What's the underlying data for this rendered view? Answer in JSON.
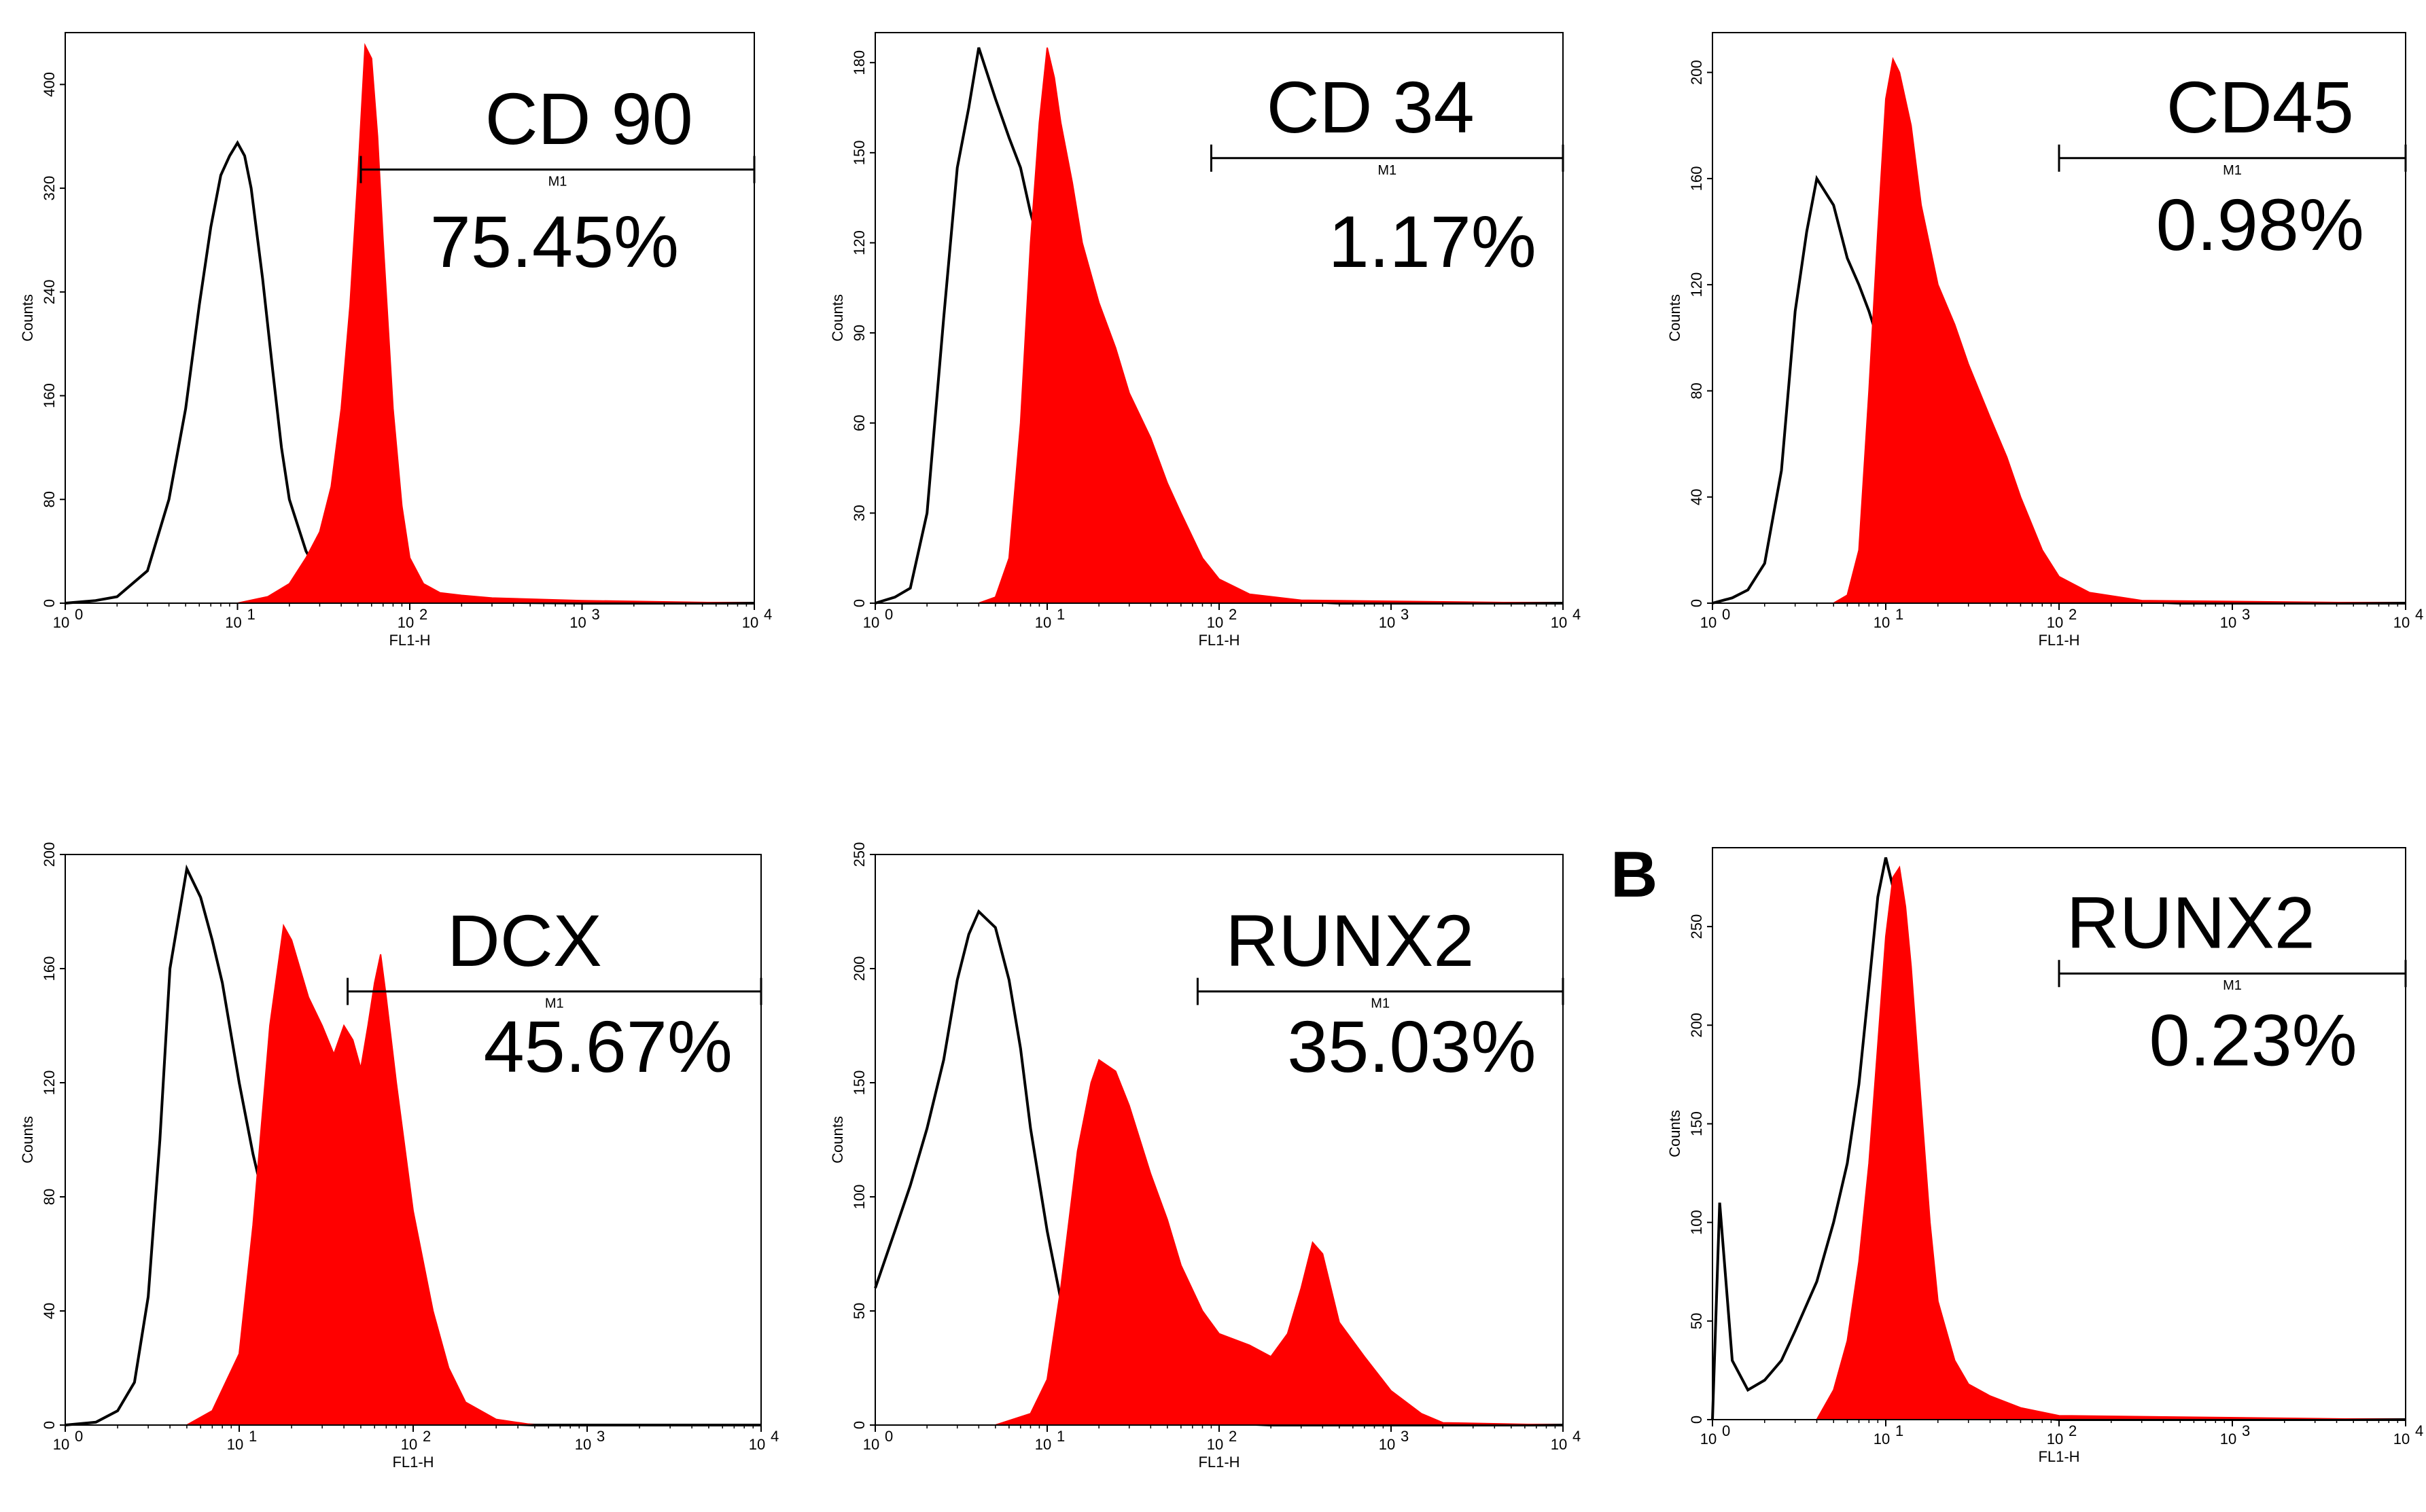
{
  "chart_data": [
    {
      "type": "area",
      "title": "CD 90",
      "percent": "75.45%",
      "gate_label": "M1",
      "gate_range": [
        52,
        10000
      ],
      "xlabel": "FL1-H",
      "ylabel": "Counts",
      "xscale": "log",
      "xlim": [
        1,
        10000
      ],
      "ylim": [
        0,
        440
      ],
      "xticks": [
        "10",
        "10",
        "10",
        "10",
        "10"
      ],
      "xtick_exps": [
        "0",
        "1",
        "2",
        "3",
        "4"
      ],
      "yticks": [
        "0",
        "80",
        "160",
        "240",
        "320",
        "400"
      ],
      "yticks_values": [
        0,
        80,
        160,
        240,
        320,
        400
      ],
      "series": [
        {
          "color": "#000000",
          "fill": "none",
          "x": [
            1,
            1.5,
            2,
            3,
            4,
            5,
            6,
            7,
            8,
            9,
            10,
            11,
            12,
            14,
            16,
            18,
            20,
            25,
            30,
            40,
            60,
            100,
            200,
            1000,
            10000
          ],
          "y": [
            0,
            2,
            5,
            25,
            80,
            150,
            230,
            290,
            330,
            345,
            355,
            345,
            320,
            250,
            180,
            120,
            80,
            40,
            22,
            12,
            6,
            3,
            1,
            0,
            0
          ]
        },
        {
          "color": "#ff0000",
          "fill": "#ff0000",
          "x": [
            1,
            10,
            15,
            20,
            25,
            30,
            35,
            40,
            45,
            50,
            55,
            60,
            65,
            70,
            80,
            90,
            100,
            120,
            150,
            200,
            300,
            1000,
            10000
          ],
          "y": [
            0,
            0,
            5,
            15,
            35,
            55,
            90,
            150,
            230,
            330,
            430,
            420,
            360,
            280,
            150,
            75,
            35,
            15,
            8,
            6,
            4,
            2,
            0
          ]
        }
      ]
    },
    {
      "type": "area",
      "title": "CD 34",
      "percent": "1.17%",
      "gate_label": "M1",
      "gate_range": [
        90,
        10000
      ],
      "xlabel": "FL1-H",
      "ylabel": "Counts",
      "xscale": "log",
      "xlim": [
        1,
        10000
      ],
      "ylim": [
        0,
        190
      ],
      "xticks": [
        "10",
        "10",
        "10",
        "10",
        "10"
      ],
      "xtick_exps": [
        "0",
        "1",
        "2",
        "3",
        "4"
      ],
      "yticks": [
        "0",
        "30",
        "60",
        "90",
        "120",
        "150",
        "180"
      ],
      "yticks_values": [
        0,
        30,
        60,
        90,
        120,
        150,
        180
      ],
      "series": [
        {
          "color": "#000000",
          "fill": "none",
          "x": [
            1,
            1.3,
            1.6,
            2,
            2.5,
            3,
            3.5,
            4,
            5,
            6,
            7,
            8,
            10,
            13,
            16,
            20,
            30,
            40,
            60,
            80,
            100,
            200,
            500,
            10000
          ],
          "y": [
            0,
            2,
            5,
            30,
            95,
            145,
            165,
            185,
            168,
            155,
            145,
            130,
            110,
            95,
            80,
            70,
            50,
            38,
            20,
            10,
            5,
            1,
            0,
            0
          ]
        },
        {
          "color": "#ff0000",
          "fill": "#ff0000",
          "x": [
            1,
            4,
            5,
            6,
            7,
            8,
            9,
            10,
            11,
            12,
            14,
            16,
            20,
            25,
            30,
            40,
            50,
            60,
            80,
            100,
            150,
            300,
            10000
          ],
          "y": [
            0,
            0,
            2,
            15,
            60,
            120,
            160,
            185,
            175,
            160,
            140,
            120,
            100,
            85,
            70,
            55,
            40,
            30,
            15,
            8,
            3,
            1,
            0
          ]
        }
      ]
    },
    {
      "type": "area",
      "title": "CD45",
      "percent": "0.98%",
      "gate_label": "M1",
      "gate_range": [
        100,
        10000
      ],
      "xlabel": "FL1-H",
      "ylabel": "Counts",
      "xscale": "log",
      "xlim": [
        1,
        10000
      ],
      "ylim": [
        0,
        215
      ],
      "xticks": [
        "10",
        "10",
        "10",
        "10",
        "10"
      ],
      "xtick_exps": [
        "0",
        "1",
        "2",
        "3",
        "4"
      ],
      "yticks": [
        "0",
        "40",
        "80",
        "120",
        "160",
        "200"
      ],
      "yticks_values": [
        0,
        40,
        80,
        120,
        160,
        200
      ],
      "series": [
        {
          "color": "#000000",
          "fill": "none",
          "x": [
            1,
            1.3,
            1.6,
            2,
            2.5,
            3,
            3.5,
            4,
            5,
            6,
            7,
            8,
            10,
            13,
            16,
            20,
            30,
            40,
            60,
            80,
            100,
            200,
            500,
            10000
          ],
          "y": [
            0,
            2,
            5,
            15,
            50,
            110,
            140,
            160,
            150,
            130,
            120,
            110,
            90,
            78,
            68,
            58,
            45,
            35,
            22,
            12,
            6,
            1,
            0,
            0
          ]
        },
        {
          "color": "#ff0000",
          "fill": "#ff0000",
          "x": [
            1,
            5,
            6,
            7,
            8,
            9,
            10,
            11,
            12,
            14,
            16,
            20,
            25,
            30,
            40,
            50,
            60,
            80,
            100,
            150,
            300,
            10000
          ],
          "y": [
            0,
            0,
            3,
            20,
            80,
            140,
            190,
            205,
            200,
            180,
            150,
            120,
            105,
            90,
            70,
            55,
            40,
            20,
            10,
            4,
            1,
            0
          ]
        }
      ]
    },
    {
      "type": "area",
      "title": "DCX",
      "percent": "45.67%",
      "gate_label": "M1",
      "gate_range": [
        42,
        10000
      ],
      "xlabel": "FL1-H",
      "ylabel": "Counts",
      "xscale": "log",
      "xlim": [
        1,
        10000
      ],
      "ylim": [
        0,
        200
      ],
      "xticks": [
        "10",
        "10",
        "10",
        "10",
        "10"
      ],
      "xtick_exps": [
        "0",
        "1",
        "2",
        "3",
        "4"
      ],
      "yticks": [
        "0",
        "40",
        "80",
        "120",
        "160",
        "200"
      ],
      "yticks_values": [
        0,
        40,
        80,
        120,
        160,
        200
      ],
      "series": [
        {
          "color": "#000000",
          "fill": "none",
          "x": [
            1,
            1.5,
            2,
            2.5,
            3,
            3.5,
            4,
            5,
            6,
            7,
            8,
            10,
            12,
            15,
            20,
            25,
            30,
            40,
            60,
            80,
            100,
            200,
            500,
            10000
          ],
          "y": [
            0,
            1,
            5,
            15,
            45,
            100,
            160,
            195,
            185,
            170,
            155,
            120,
            95,
            70,
            45,
            30,
            22,
            14,
            8,
            5,
            3,
            1,
            0,
            0
          ]
        },
        {
          "color": "#ff0000",
          "fill": "#ff0000",
          "x": [
            1,
            5,
            7,
            10,
            12,
            15,
            18,
            20,
            25,
            30,
            35,
            40,
            45,
            50,
            55,
            60,
            65,
            70,
            80,
            100,
            130,
            160,
            200,
            300,
            500,
            10000
          ],
          "y": [
            0,
            0,
            5,
            25,
            70,
            140,
            175,
            170,
            150,
            140,
            130,
            140,
            135,
            125,
            140,
            155,
            165,
            150,
            120,
            75,
            40,
            20,
            8,
            2,
            0,
            0
          ]
        }
      ]
    },
    {
      "type": "area",
      "title": "RUNX2",
      "percent": "35.03%",
      "gate_label": "M1",
      "gate_range": [
        75,
        10000
      ],
      "xlabel": "FL1-H",
      "ylabel": "Counts",
      "xscale": "log",
      "xlim": [
        1,
        10000
      ],
      "ylim": [
        0,
        250
      ],
      "xticks": [
        "10",
        "10",
        "10",
        "10",
        "10"
      ],
      "xtick_exps": [
        "0",
        "1",
        "2",
        "3",
        "4"
      ],
      "yticks": [
        "0",
        "50",
        "100",
        "150",
        "200",
        "250"
      ],
      "yticks_values": [
        0,
        50,
        100,
        150,
        200,
        250
      ],
      "series": [
        {
          "color": "#000000",
          "fill": "none",
          "x": [
            1,
            1.3,
            1.6,
            2,
            2.5,
            3,
            3.5,
            4,
            5,
            6,
            7,
            8,
            10,
            12,
            15,
            20,
            25,
            30,
            40,
            60,
            80,
            100,
            200,
            500,
            10000
          ],
          "y": [
            60,
            85,
            105,
            130,
            160,
            195,
            215,
            225,
            218,
            195,
            165,
            130,
            85,
            55,
            35,
            22,
            15,
            10,
            6,
            3,
            2,
            1,
            0,
            0,
            0
          ]
        },
        {
          "color": "#ff0000",
          "fill": "#ff0000",
          "x": [
            1,
            5,
            8,
            10,
            12,
            15,
            18,
            20,
            25,
            30,
            40,
            50,
            60,
            80,
            100,
            150,
            200,
            250,
            300,
            350,
            400,
            500,
            700,
            1000,
            1500,
            2000,
            10000
          ],
          "y": [
            0,
            0,
            5,
            20,
            60,
            120,
            150,
            160,
            155,
            140,
            110,
            90,
            70,
            50,
            40,
            35,
            30,
            40,
            60,
            80,
            75,
            45,
            30,
            15,
            5,
            1,
            0
          ]
        }
      ]
    },
    {
      "type": "area",
      "panel_letter": "B",
      "title": "RUNX2",
      "percent": "0.23%",
      "gate_label": "M1",
      "gate_range": [
        100,
        10000
      ],
      "xlabel": "FL1-H",
      "ylabel": "Counts",
      "xscale": "log",
      "xlim": [
        1,
        10000
      ],
      "ylim": [
        0,
        290
      ],
      "xticks": [
        "10",
        "10",
        "10",
        "10",
        "10"
      ],
      "xtick_exps": [
        "0",
        "1",
        "2",
        "3",
        "4"
      ],
      "yticks": [
        "0",
        "50",
        "100",
        "150",
        "200",
        "250"
      ],
      "yticks_values": [
        0,
        50,
        100,
        150,
        200,
        250
      ],
      "series": [
        {
          "color": "#000000",
          "fill": "none",
          "x": [
            1,
            1.1,
            1.3,
            1.6,
            2,
            2.5,
            3,
            4,
            5,
            6,
            7,
            8,
            9,
            10,
            11,
            12,
            14,
            16,
            18,
            20,
            25,
            30,
            50,
            100,
            10000
          ],
          "y": [
            0,
            110,
            30,
            15,
            20,
            30,
            45,
            70,
            100,
            130,
            170,
            220,
            265,
            285,
            270,
            240,
            180,
            120,
            70,
            40,
            15,
            7,
            2,
            0,
            0
          ]
        },
        {
          "color": "#ff0000",
          "fill": "#ff0000",
          "x": [
            1,
            4,
            5,
            6,
            7,
            8,
            9,
            10,
            11,
            12,
            13,
            14,
            16,
            18,
            20,
            25,
            30,
            40,
            60,
            100,
            10000
          ],
          "y": [
            0,
            0,
            15,
            40,
            80,
            130,
            190,
            245,
            275,
            280,
            260,
            230,
            160,
            100,
            60,
            30,
            18,
            12,
            6,
            2,
            0
          ]
        }
      ]
    }
  ]
}
